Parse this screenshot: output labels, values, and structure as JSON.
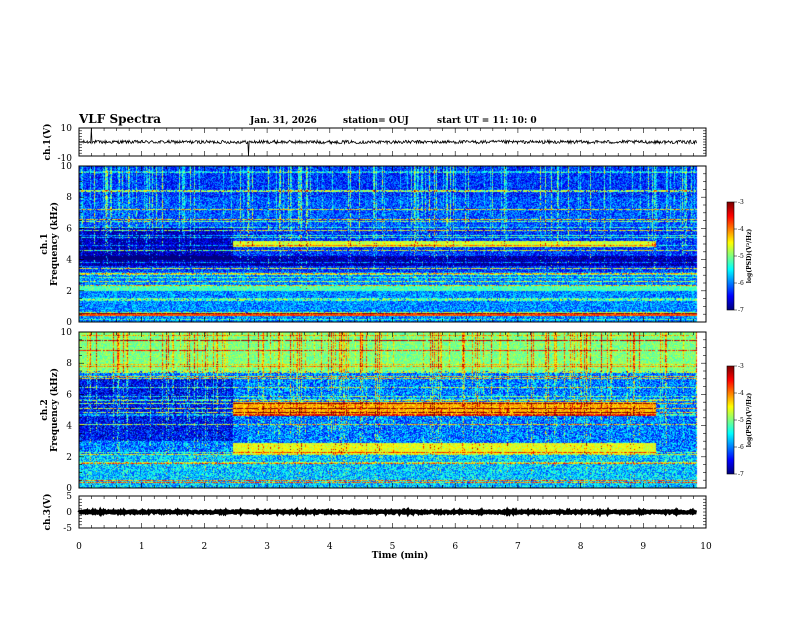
{
  "chart_data": {
    "type": "heatmap",
    "title": "VLF Spectra",
    "date": "Jan. 31, 2026",
    "station": "station= OUJ",
    "start_ut": "start  UT =   11: 10: 0",
    "xlabel": "Time  (min)",
    "xlim": [
      0,
      10
    ],
    "x_ticks": [
      "0",
      "1",
      "2",
      "3",
      "4",
      "5",
      "6",
      "7",
      "8",
      "9",
      "10"
    ],
    "data_end_min": 9.85,
    "panels": [
      {
        "id": "ch1_wave",
        "type": "line",
        "ylabel": "ch.1(V)",
        "ylim": [
          -10,
          10
        ],
        "y_ticks": [
          "10",
          "-10"
        ],
        "mean": 0,
        "noise": 1.2,
        "spikes": [
          {
            "t": 0.2,
            "v": 10
          },
          {
            "t": 2.7,
            "v": -10
          }
        ]
      },
      {
        "id": "ch1_spec",
        "type": "heatmap",
        "ylabel_line1": "ch.1",
        "ylabel_line2": "Frequency  (kHz)",
        "ylim": [
          0,
          10
        ],
        "y_ticks": [
          "0",
          "2",
          "4",
          "6",
          "8",
          "10"
        ],
        "bands": [
          {
            "f0": 4.8,
            "f1": 5.2,
            "t0": 2.45,
            "t1": 9.2,
            "level": -4.7
          },
          {
            "f0": 0.4,
            "f1": 0.55,
            "t0": 0,
            "t1": 9.85,
            "level": -3.8
          },
          {
            "f0": 2.0,
            "f1": 2.3,
            "t0": 0,
            "t1": 9.85,
            "level": -5.2
          }
        ],
        "colorbar": {
          "label": "log(PSD)(V²/Hz)",
          "ticks": [
            "-3",
            "-4",
            "-5",
            "-6",
            "-7"
          ],
          "range": [
            -7,
            -3
          ]
        }
      },
      {
        "id": "ch2_spec",
        "type": "heatmap",
        "ylabel_line1": "ch.2",
        "ylabel_line2": "Frequency  (kHz)",
        "ylim": [
          0,
          10
        ],
        "y_ticks": [
          "0",
          "2",
          "4",
          "6",
          "8",
          "10"
        ],
        "bands": [
          {
            "f0": 4.6,
            "f1": 5.5,
            "t0": 2.45,
            "t1": 9.2,
            "level": -4.2
          },
          {
            "f0": 2.2,
            "f1": 2.9,
            "t0": 2.45,
            "t1": 9.2,
            "level": -4.6
          },
          {
            "f0": 7.5,
            "f1": 10,
            "t0": 0,
            "t1": 9.85,
            "level": -5.0
          }
        ],
        "colorbar": {
          "label": "log(PSD)(V²/Hz)",
          "ticks": [
            "-3",
            "-4",
            "-5",
            "-6",
            "-7"
          ],
          "range": [
            -7,
            -3
          ]
        }
      },
      {
        "id": "ch3_wave",
        "type": "line",
        "ylabel": "ch.3(V)",
        "ylim": [
          -5,
          5
        ],
        "y_ticks": [
          "5",
          "0",
          "-5"
        ],
        "mean": 0,
        "noise": 0.25
      }
    ]
  }
}
